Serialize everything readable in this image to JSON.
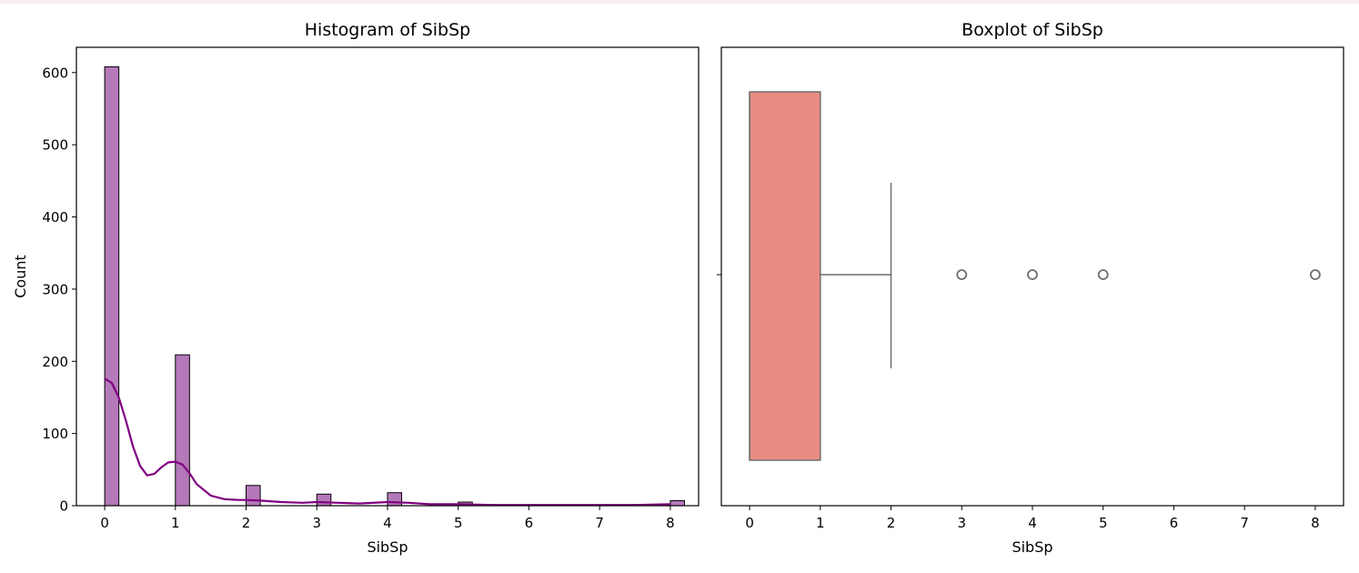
{
  "colors": {
    "hist_fill": "#b479b9",
    "hist_edge": "#000000",
    "kde_line": "#800080",
    "box_fill": "#e88c82",
    "box_line": "#6e6e6e"
  },
  "chart_data": [
    {
      "type": "bar",
      "subtype": "histogram_with_kde",
      "title": "Histogram of SibSp",
      "xlabel": "SibSp",
      "ylabel": "Count",
      "xlim": [
        -0.4,
        8.4
      ],
      "ylim": [
        0,
        635
      ],
      "xticks": [
        0,
        1,
        2,
        3,
        4,
        5,
        6,
        7,
        8
      ],
      "yticks": [
        0,
        100,
        200,
        300,
        400,
        500,
        600
      ],
      "bin_width": 0.2,
      "bars": [
        {
          "x": 0,
          "count": 608
        },
        {
          "x": 1,
          "count": 209
        },
        {
          "x": 2,
          "count": 28
        },
        {
          "x": 3,
          "count": 16
        },
        {
          "x": 4,
          "count": 18
        },
        {
          "x": 5,
          "count": 5
        },
        {
          "x": 8,
          "count": 7
        }
      ],
      "kde": {
        "x": [
          0,
          0.1,
          0.2,
          0.3,
          0.4,
          0.5,
          0.6,
          0.7,
          0.8,
          0.9,
          1.0,
          1.1,
          1.2,
          1.3,
          1.5,
          1.7,
          1.9,
          2.0,
          2.2,
          2.5,
          2.8,
          3.0,
          3.3,
          3.6,
          4.0,
          4.3,
          4.6,
          5.0,
          5.5,
          6.0,
          7.0,
          7.5,
          8.0
        ],
        "y": [
          176,
          170,
          150,
          118,
          82,
          55,
          42,
          44,
          53,
          60,
          61,
          57,
          45,
          30,
          14,
          9,
          8,
          8,
          7,
          5,
          4,
          5,
          4,
          3,
          5,
          4,
          2,
          2,
          1,
          1,
          1,
          1,
          2
        ]
      }
    },
    {
      "type": "boxplot",
      "title": "Boxplot of SibSp",
      "xlabel": "SibSp",
      "xlim": [
        -0.4,
        8.4
      ],
      "xticks": [
        0,
        1,
        2,
        3,
        4,
        5,
        6,
        7,
        8
      ],
      "box": {
        "whisker_low": 0,
        "q1": 0,
        "median": 0,
        "q3": 1,
        "whisker_high": 2
      },
      "outliers": [
        3,
        4,
        5,
        8
      ]
    }
  ]
}
